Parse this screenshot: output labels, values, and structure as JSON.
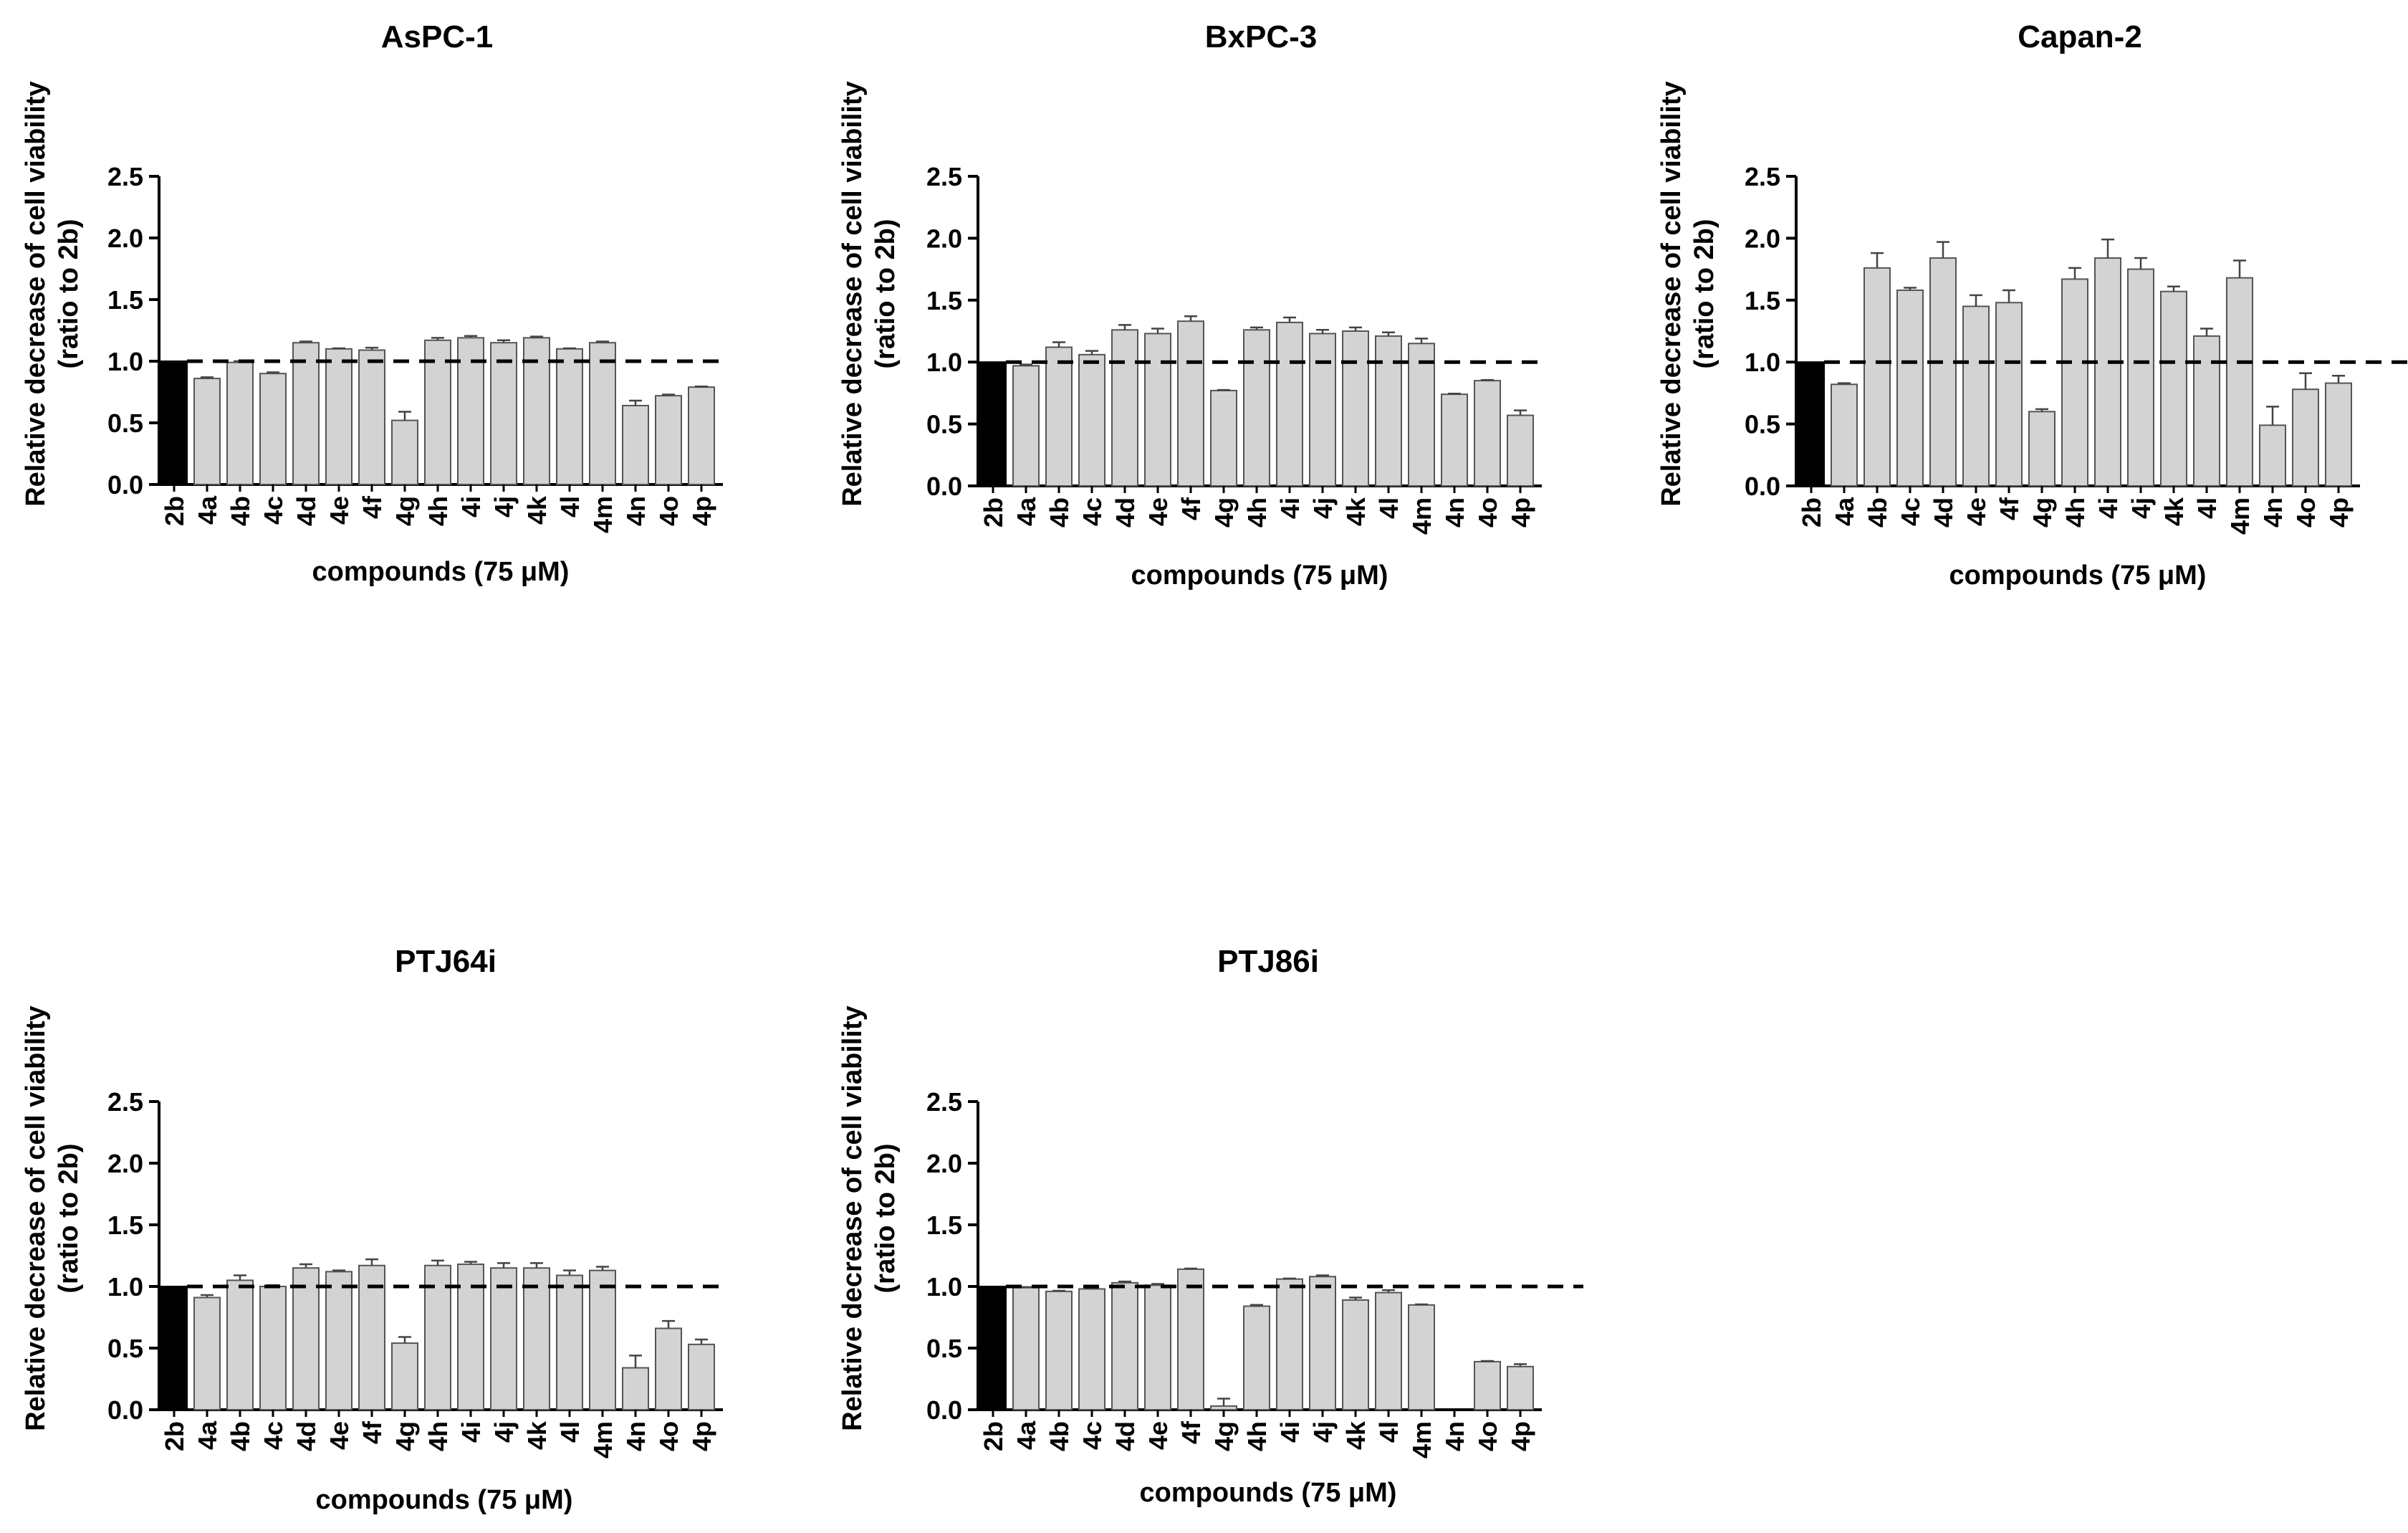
{
  "chart_data": [
    {
      "type": "bar",
      "title": "AsPC-1",
      "ylabel_line1": "Relative decrease of cell viability",
      "ylabel_line2": "(ratio to 2b)",
      "xlabel": "compounds (75 μM)",
      "ylim": [
        0,
        2.5
      ],
      "yticks": [
        "0.0",
        "0.5",
        "1.0",
        "1.5",
        "2.0",
        "2.5"
      ],
      "reference_line": 1.0,
      "categories": [
        "2b",
        "4a",
        "4b",
        "4c",
        "4d",
        "4e",
        "4f",
        "4g",
        "4h",
        "4i",
        "4j",
        "4k",
        "4l",
        "4m",
        "4n",
        "4o",
        "4p"
      ],
      "values": [
        1.0,
        0.86,
        0.99,
        0.9,
        1.15,
        1.1,
        1.09,
        0.52,
        1.17,
        1.19,
        1.15,
        1.19,
        1.1,
        1.15,
        0.64,
        0.72,
        0.79
      ],
      "errors": [
        0,
        0.01,
        0.01,
        0.01,
        0.01,
        0.005,
        0.02,
        0.07,
        0.02,
        0.015,
        0.02,
        0.01,
        0.005,
        0.01,
        0.04,
        0.01,
        0.005
      ],
      "colors": {
        "control": "#000000",
        "bar": "#d3d3d3"
      }
    },
    {
      "type": "bar",
      "title": "BxPC-3",
      "ylabel_line1": "Relative decrease of cell viability",
      "ylabel_line2": "(ratio to 2b)",
      "xlabel": "compounds (75 μM)",
      "ylim": [
        0,
        2.5
      ],
      "yticks": [
        "0.0",
        "0.5",
        "1.0",
        "1.5",
        "2.0",
        "2.5"
      ],
      "reference_line": 1.0,
      "categories": [
        "2b",
        "4a",
        "4b",
        "4c",
        "4d",
        "4e",
        "4f",
        "4g",
        "4h",
        "4i",
        "4j",
        "4k",
        "4l",
        "4m",
        "4n",
        "4o",
        "4p"
      ],
      "values": [
        1.0,
        0.97,
        1.12,
        1.06,
        1.26,
        1.23,
        1.33,
        0.77,
        1.26,
        1.32,
        1.23,
        1.25,
        1.21,
        1.15,
        0.74,
        0.85,
        0.57
      ],
      "errors": [
        0,
        0.01,
        0.04,
        0.03,
        0.04,
        0.04,
        0.04,
        0.005,
        0.02,
        0.04,
        0.03,
        0.03,
        0.03,
        0.04,
        0.005,
        0.005,
        0.04
      ],
      "colors": {
        "control": "#000000",
        "bar": "#d3d3d3"
      }
    },
    {
      "type": "bar",
      "title": "Capan-2",
      "ylabel_line1": "Relative decrease of cell viability",
      "ylabel_line2": "(ratio to 2b)",
      "xlabel": "compounds (75 μM)",
      "ylim": [
        0,
        2.5
      ],
      "yticks": [
        "0.0",
        "0.5",
        "1.0",
        "1.5",
        "2.0",
        "2.5"
      ],
      "reference_line": 1.0,
      "categories": [
        "2b",
        "4a",
        "4b",
        "4c",
        "4d",
        "4e",
        "4f",
        "4g",
        "4h",
        "4i",
        "4j",
        "4k",
        "4l",
        "4m",
        "4n",
        "4o",
        "4p"
      ],
      "values": [
        1.0,
        0.82,
        1.76,
        1.58,
        1.84,
        1.45,
        1.48,
        0.6,
        1.67,
        1.84,
        1.75,
        1.57,
        1.21,
        1.68,
        0.49,
        0.78,
        0.83
      ],
      "errors": [
        0,
        0.01,
        0.12,
        0.02,
        0.13,
        0.09,
        0.1,
        0.02,
        0.09,
        0.15,
        0.09,
        0.04,
        0.06,
        0.14,
        0.15,
        0.13,
        0.06
      ],
      "colors": {
        "control": "#000000",
        "bar": "#d3d3d3"
      }
    },
    {
      "type": "bar",
      "title": "PTJ64i",
      "ylabel_line1": "Relative decrease of cell viability",
      "ylabel_line2": "(ratio to 2b)",
      "xlabel": "compounds (75 μM)",
      "ylim": [
        0,
        2.5
      ],
      "yticks": [
        "0.0",
        "0.5",
        "1.0",
        "1.5",
        "2.0",
        "2.5"
      ],
      "reference_line": 1.0,
      "categories": [
        "2b",
        "4a",
        "4b",
        "4c",
        "4d",
        "4e",
        "4f",
        "4g",
        "4h",
        "4i",
        "4j",
        "4k",
        "4l",
        "4m",
        "4n",
        "4o",
        "4p"
      ],
      "values": [
        1.0,
        0.91,
        1.05,
        1.0,
        1.15,
        1.12,
        1.17,
        0.54,
        1.17,
        1.18,
        1.15,
        1.15,
        1.09,
        1.13,
        0.34,
        0.66,
        0.53
      ],
      "errors": [
        0,
        0.02,
        0.04,
        0.01,
        0.03,
        0.01,
        0.05,
        0.05,
        0.04,
        0.02,
        0.04,
        0.04,
        0.04,
        0.03,
        0.1,
        0.06,
        0.04
      ],
      "colors": {
        "control": "#000000",
        "bar": "#d3d3d3"
      }
    },
    {
      "type": "bar",
      "title": "PTJ86i",
      "ylabel_line1": "Relative decrease of cell viability",
      "ylabel_line2": "(ratio to 2b)",
      "xlabel": "compounds (75 μM)",
      "ylim": [
        0,
        2.5
      ],
      "yticks": [
        "0.0",
        "0.5",
        "1.0",
        "1.5",
        "2.0",
        "2.5"
      ],
      "reference_line": 1.0,
      "categories": [
        "2b",
        "4a",
        "4b",
        "4c",
        "4d",
        "4e",
        "4f",
        "4g",
        "4h",
        "4i",
        "4j",
        "4k",
        "4l",
        "4m",
        "4n",
        "4o",
        "4p"
      ],
      "values": [
        1.0,
        0.99,
        0.96,
        0.98,
        1.03,
        1.01,
        1.14,
        0.03,
        0.84,
        1.06,
        1.08,
        0.89,
        0.95,
        0.85,
        0.0,
        0.39,
        0.35
      ],
      "errors": [
        0,
        0.005,
        0.005,
        0.005,
        0.01,
        0.01,
        0.005,
        0.06,
        0.01,
        0.005,
        0.01,
        0.02,
        0.02,
        0.005,
        0,
        0.005,
        0.02
      ],
      "colors": {
        "control": "#000000",
        "bar": "#d3d3d3"
      }
    }
  ]
}
